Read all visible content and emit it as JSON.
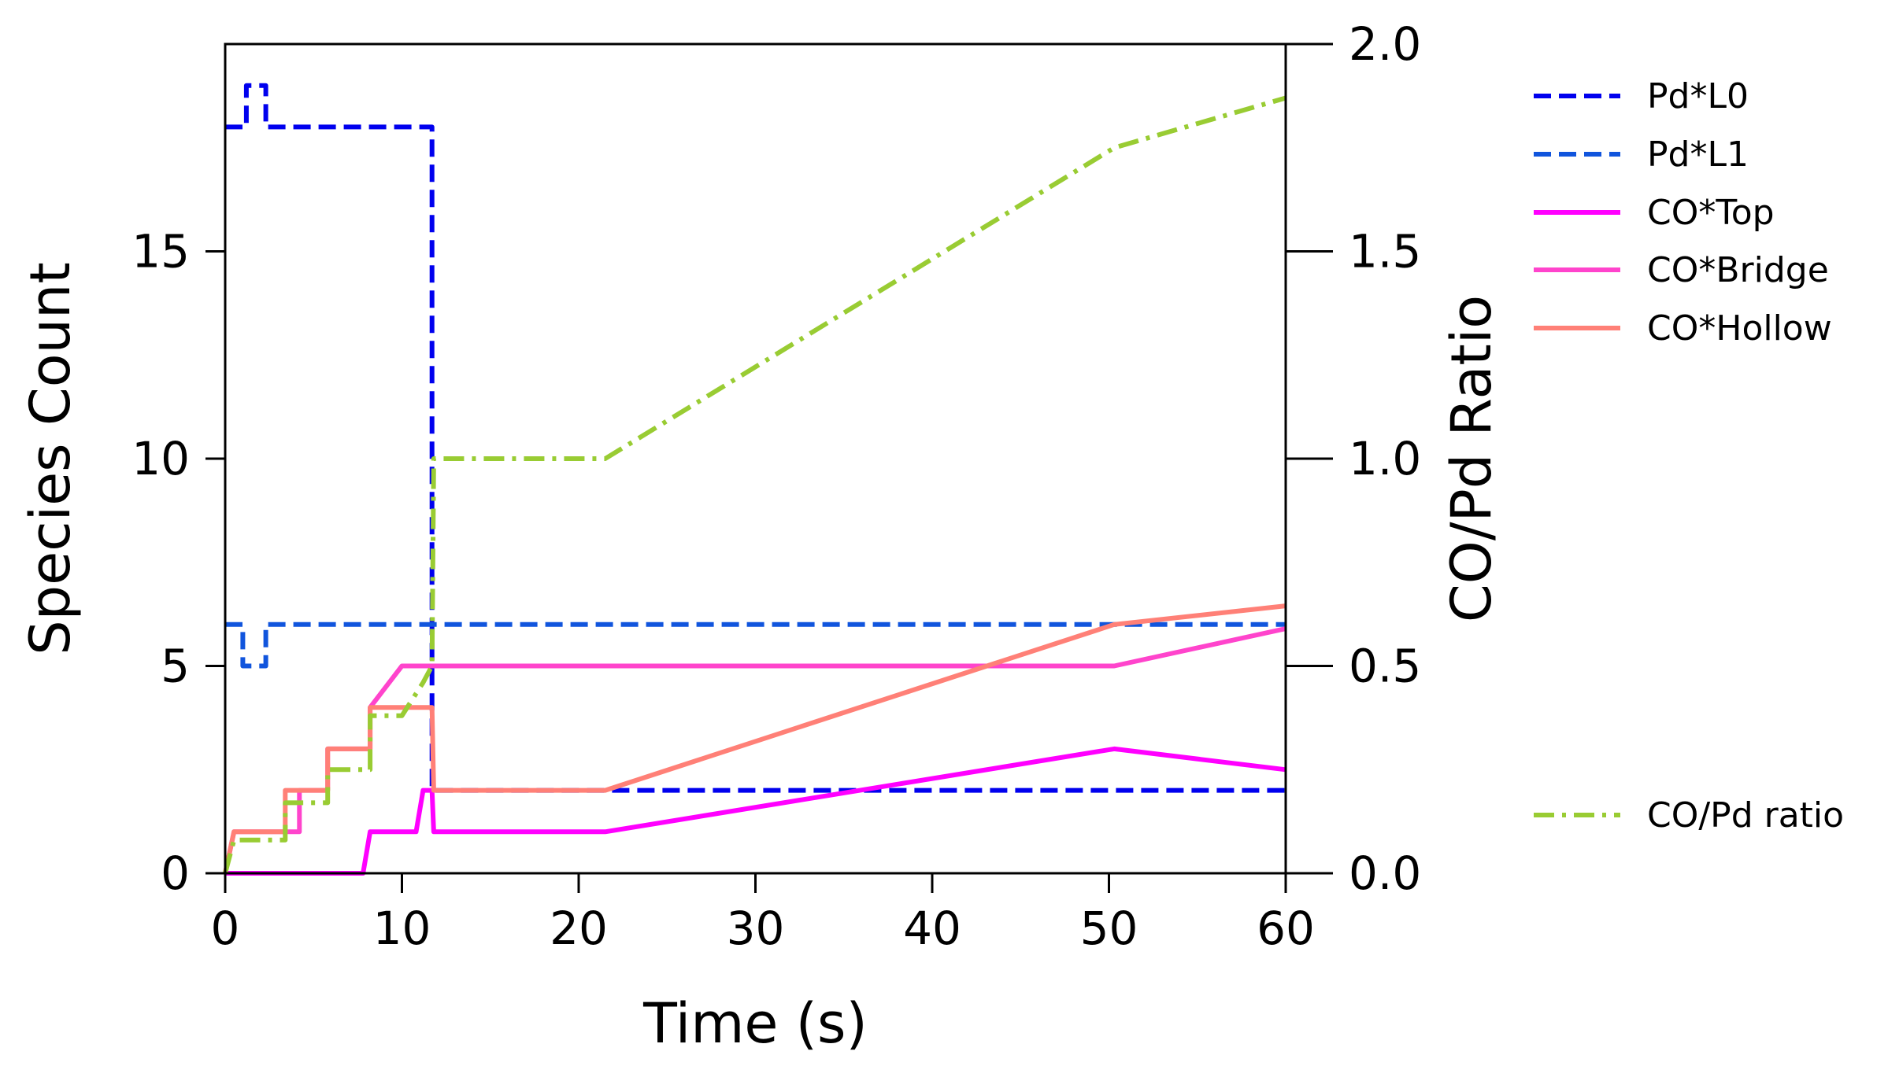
{
  "chart_data": {
    "type": "line",
    "title": "",
    "xlabel": "Time (s)",
    "ylabel_left": "Species Count",
    "ylabel_right": "CO/Pd Ratio",
    "xlim": [
      0,
      60
    ],
    "ylim_left": [
      0,
      20
    ],
    "ylim_right": [
      0,
      2.0
    ],
    "xticks": [
      0,
      10,
      20,
      30,
      40,
      50,
      60
    ],
    "xtick_labels": [
      "0",
      "10",
      "20",
      "30",
      "40",
      "50",
      "60"
    ],
    "yticks_left": [
      0,
      5,
      10,
      15
    ],
    "ytick_labels_left": [
      "0",
      "5",
      "10",
      "15"
    ],
    "yticks_right": [
      0.0,
      0.5,
      1.0,
      1.5,
      2.0
    ],
    "ytick_labels_right": [
      "0.0",
      "0.5",
      "1.0",
      "1.5",
      "2.0"
    ],
    "grid": false,
    "legend_placement": "outside-right",
    "series": [
      {
        "name": "Pd*L0",
        "axis": "left",
        "color": "#0000ee",
        "style": "dashed",
        "x": [
          0,
          1.2,
          1.2,
          2.3,
          2.3,
          11.7,
          11.7,
          60
        ],
        "y": [
          18,
          18,
          19,
          19,
          18,
          18,
          2,
          2
        ]
      },
      {
        "name": "Pd*L1",
        "axis": "left",
        "color": "#1155dd",
        "style": "dashed",
        "x": [
          0,
          1.0,
          1.0,
          2.3,
          2.3,
          60
        ],
        "y": [
          6,
          6,
          5,
          5,
          6,
          6
        ]
      },
      {
        "name": "CO*Top",
        "axis": "left",
        "color": "#ff00ff",
        "style": "solid",
        "x": [
          0,
          7.8,
          8.2,
          10.8,
          11.2,
          11.7,
          11.8,
          21.5,
          50.3,
          60
        ],
        "y": [
          0,
          0,
          1,
          1,
          2,
          2,
          1,
          1,
          3,
          2.5
        ]
      },
      {
        "name": "CO*Bridge",
        "axis": "left",
        "color": "#ff44cc",
        "style": "solid",
        "x": [
          0,
          0.5,
          4.2,
          4.2,
          5.8,
          5.8,
          8.2,
          8.2,
          10.0,
          50.3,
          60
        ],
        "y": [
          0,
          1,
          1,
          2,
          2,
          3,
          3,
          4,
          5,
          5,
          5.9
        ]
      },
      {
        "name": "CO*Hollow",
        "axis": "left",
        "color": "#ff8077",
        "style": "solid",
        "x": [
          0,
          0.5,
          3.4,
          3.4,
          5.8,
          5.8,
          8.2,
          8.2,
          11.7,
          11.8,
          21.5,
          50.3,
          60
        ],
        "y": [
          0,
          1,
          1,
          2,
          2,
          3,
          3,
          4,
          4,
          2,
          2,
          6,
          6.45
        ]
      },
      {
        "name": "CO/Pd ratio",
        "axis": "right",
        "color": "#99cc33",
        "style": "dashdot",
        "x": [
          0,
          0.5,
          3.4,
          3.4,
          5.8,
          5.8,
          8.2,
          8.2,
          10.0,
          11.2,
          11.7,
          11.8,
          21.5,
          50.3,
          60
        ],
        "y": [
          0,
          0.08,
          0.08,
          0.17,
          0.17,
          0.25,
          0.25,
          0.38,
          0.38,
          0.46,
          0.5,
          1.0,
          1.0,
          1.75,
          1.87
        ]
      }
    ]
  }
}
